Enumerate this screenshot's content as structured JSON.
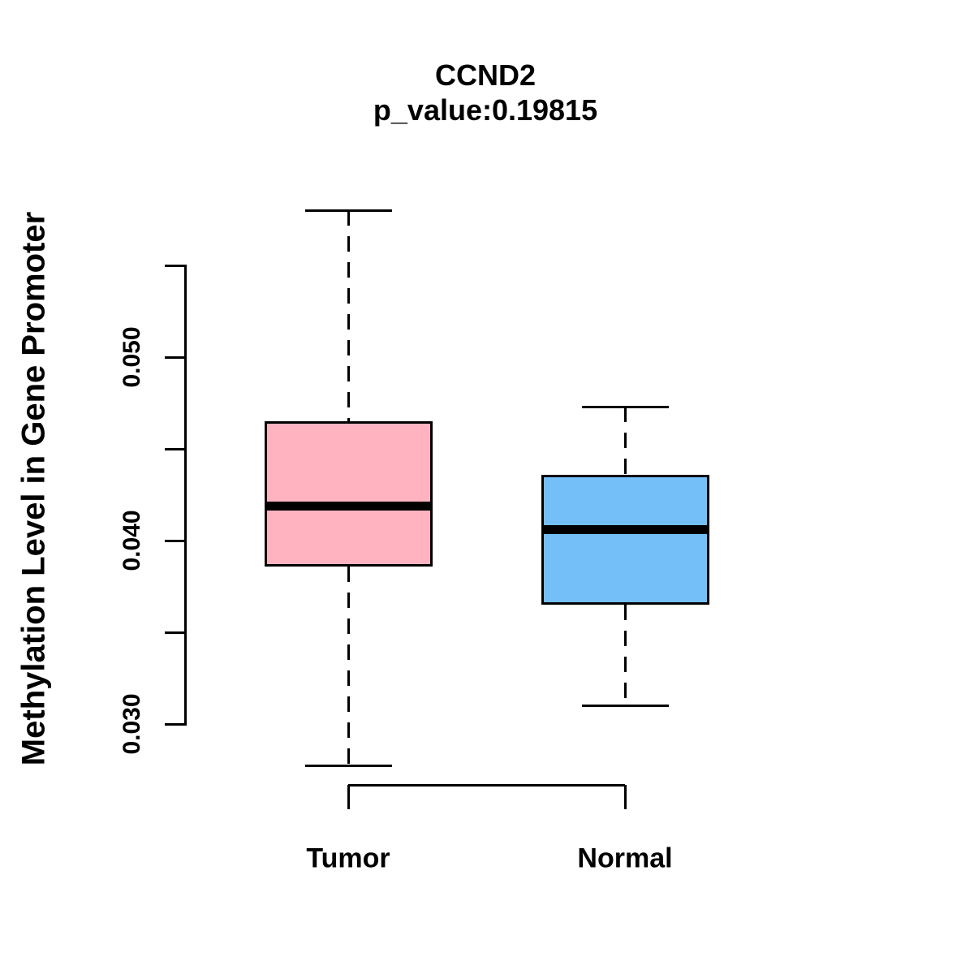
{
  "title": {
    "gene": "CCND2",
    "pvalue_line": "p_value:0.19815"
  },
  "y_axis": {
    "label": "Methylation Level in Gene Promoter",
    "tick_labels": [
      "0.050",
      "0.040",
      "0.030"
    ]
  },
  "x_axis": {
    "categories": [
      "Tumor",
      "Normal"
    ]
  },
  "colors": {
    "tumor_box": "#FFB3C1",
    "normal_box": "#74BFF8",
    "line": "#000000",
    "background": "#FFFFFF"
  },
  "chart_data": {
    "type": "box",
    "title": "CCND2",
    "subtitle": "p_value:0.19815",
    "ylabel": "Methylation Level in Gene Promoter",
    "xlabel": "",
    "categories": [
      "Tumor",
      "Normal"
    ],
    "series": [
      {
        "name": "Tumor",
        "color": "#FFB3C1",
        "whisker_low": 0.0277,
        "q1": 0.0386,
        "median": 0.0419,
        "q3": 0.0465,
        "whisker_high": 0.058
      },
      {
        "name": "Normal",
        "color": "#74BFF8",
        "whisker_low": 0.031,
        "q1": 0.0365,
        "median": 0.0406,
        "q3": 0.0436,
        "whisker_high": 0.0473
      }
    ],
    "ylim": [
      0.0275,
      0.0585
    ],
    "yticks_all": [
      0.03,
      0.035,
      0.04,
      0.045,
      0.05,
      0.055
    ],
    "ytick_labeled": [
      {
        "value": 0.05,
        "label": "0.050"
      },
      {
        "value": 0.04,
        "label": "0.040"
      },
      {
        "value": 0.03,
        "label": "0.030"
      }
    ],
    "grid": false,
    "legend": "none"
  }
}
